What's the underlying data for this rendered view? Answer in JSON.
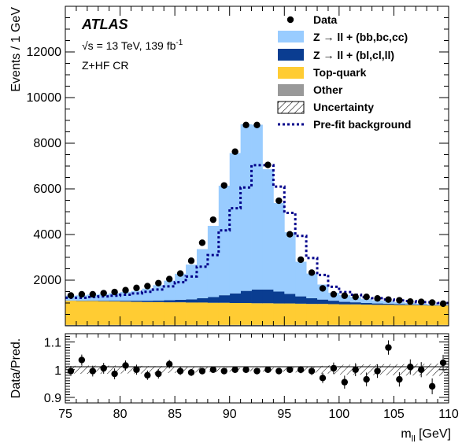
{
  "chart_data": {
    "type": "histogram",
    "experiment": "ATLAS",
    "energy_prefix": "√s = 13 TeV, 139 fb",
    "energy_sup": "-1",
    "region": "Z+HF CR",
    "xlabel_main": "m",
    "xlabel_sub": "ll",
    "xlabel_unit": " [GeV]",
    "ylabel": "Events / 1 GeV",
    "ratio_ylabel": "Data/Pred.",
    "xlim": [
      75,
      110
    ],
    "ylim": [
      0,
      14000
    ],
    "ratio_ylim": [
      0.88,
      1.13
    ],
    "x_ticks": [
      75,
      80,
      85,
      90,
      95,
      100,
      105,
      110
    ],
    "y_ticks": [
      2000,
      4000,
      6000,
      8000,
      10000,
      12000
    ],
    "ratio_ticks": [
      "0.9",
      "1",
      "1.1"
    ],
    "bin_width": 1,
    "bin_edges_start": 75,
    "legend": {
      "data": "Data",
      "zhf": "Z → ll + (bb,bc,cc)",
      "zlf": "Z → ll + (bl,cl,ll)",
      "top": "Top-quark",
      "other": "Other",
      "unc": "Uncertainty",
      "prefit": "Pre-fit background"
    },
    "colors": {
      "zhf": "#99ccff",
      "zlf": "#0a3d91",
      "top": "#ffcc33",
      "other": "#999999",
      "prefit": "#00008b"
    },
    "stack_order": [
      "other",
      "top",
      "zlf",
      "zhf"
    ],
    "series": [
      {
        "name": "Other",
        "key": "other",
        "values": [
          40,
          40,
          40,
          40,
          40,
          40,
          40,
          40,
          40,
          40,
          40,
          40,
          40,
          40,
          40,
          40,
          40,
          40,
          40,
          40,
          40,
          40,
          40,
          40,
          40,
          40,
          40,
          40,
          40,
          40,
          40,
          40,
          40,
          40,
          40
        ]
      },
      {
        "name": "Top-quark",
        "key": "top",
        "values": [
          1060,
          1050,
          1050,
          1040,
          1030,
          1020,
          1010,
          1000,
          1000,
          990,
          990,
          980,
          980,
          970,
          970,
          960,
          960,
          950,
          950,
          940,
          940,
          930,
          920,
          920,
          910,
          900,
          900,
          890,
          880,
          880,
          870,
          870,
          860,
          850,
          850
        ]
      },
      {
        "name": "Z → ll + (bl,cl,ll)",
        "key": "zlf",
        "values": [
          10,
          15,
          20,
          25,
          30,
          40,
          50,
          60,
          70,
          90,
          110,
          140,
          190,
          250,
          330,
          420,
          530,
          600,
          600,
          520,
          420,
          320,
          250,
          190,
          150,
          110,
          90,
          70,
          60,
          50,
          40,
          30,
          25,
          20,
          15
        ]
      },
      {
        "name": "Z → ll + (bb,bc,cc)",
        "key": "zhf",
        "values": [
          210,
          230,
          260,
          290,
          330,
          380,
          430,
          530,
          670,
          860,
          1140,
          1520,
          2150,
          3120,
          4800,
          6150,
          7300,
          7220,
          5270,
          3880,
          2700,
          1520,
          1080,
          660,
          350,
          290,
          230,
          170,
          140,
          110,
          80,
          60,
          45,
          30,
          25
        ]
      }
    ],
    "prefit": [
      1230,
      1230,
      1260,
      1290,
      1320,
      1360,
      1420,
      1490,
      1590,
      1730,
      1910,
      2160,
      2590,
      3100,
      4180,
      5150,
      6060,
      7040,
      7040,
      6100,
      4950,
      3940,
      2970,
      2230,
      1710,
      1480,
      1360,
      1250,
      1210,
      1150,
      1110,
      1080,
      1040,
      1030,
      1000
    ],
    "data": [
      1330,
      1380,
      1380,
      1430,
      1480,
      1560,
      1660,
      1740,
      1870,
      2050,
      2290,
      2850,
      3640,
      4650,
      6150,
      7630,
      8800,
      8800,
      7050,
      5480,
      4010,
      2900,
      2330,
      1640,
      1380,
      1320,
      1270,
      1270,
      1200,
      1150,
      1120,
      1060,
      1050,
      1020,
      970
    ],
    "ratio": [
      0.995,
      1.035,
      0.995,
      1.005,
      0.985,
      1.015,
      1.0,
      0.98,
      0.985,
      1.02,
      0.995,
      0.99,
      0.995,
      1.0,
      0.995,
      1.0,
      1.0,
      0.995,
      1.0,
      0.995,
      1.0,
      1.0,
      0.995,
      0.97,
      1.005,
      0.955,
      1.0,
      0.965,
      0.995,
      1.08,
      0.965,
      1.01,
      1.0,
      0.94,
      1.025
    ],
    "ratio_err": [
      0.014,
      0.015,
      0.015,
      0.015,
      0.015,
      0.014,
      0.014,
      0.013,
      0.013,
      0.012,
      0.011,
      0.01,
      0.009,
      0.008,
      0.007,
      0.006,
      0.006,
      0.006,
      0.007,
      0.007,
      0.008,
      0.01,
      0.011,
      0.014,
      0.016,
      0.018,
      0.018,
      0.019,
      0.019,
      0.02,
      0.02,
      0.021,
      0.021,
      0.022,
      0.022
    ]
  }
}
